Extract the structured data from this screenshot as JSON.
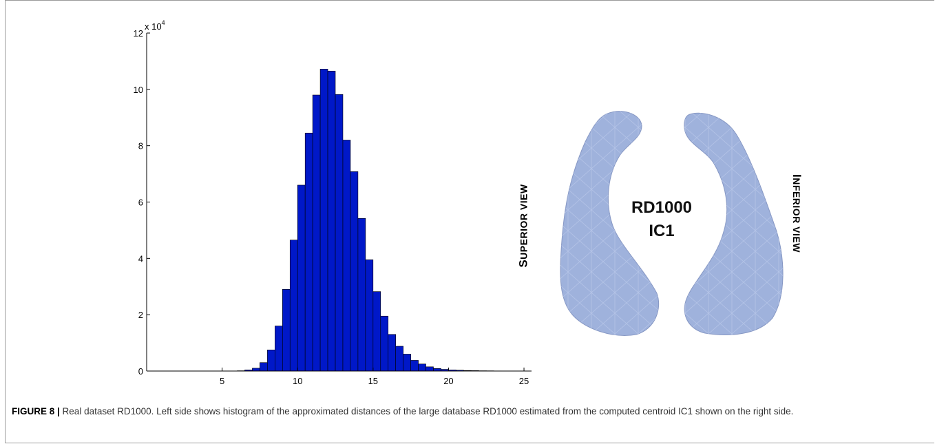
{
  "chart_data": {
    "type": "bar",
    "title": "",
    "xlabel": "",
    "ylabel": "",
    "y_multiplier": "x 10",
    "y_multiplier_exp": "4",
    "xlim": [
      0,
      25.5
    ],
    "ylim": [
      0,
      12
    ],
    "xticks": [
      "5",
      "10",
      "15",
      "20",
      "25"
    ],
    "yticks": [
      "0",
      "2",
      "4",
      "6",
      "8",
      "10",
      "12"
    ],
    "bin_width": 0.5,
    "bar_color": "#0018c8",
    "bins": [
      {
        "x": 6.0,
        "value": 0.01
      },
      {
        "x": 6.5,
        "value": 0.04
      },
      {
        "x": 7.0,
        "value": 0.1
      },
      {
        "x": 7.5,
        "value": 0.3
      },
      {
        "x": 8.0,
        "value": 0.75
      },
      {
        "x": 8.5,
        "value": 1.6
      },
      {
        "x": 9.0,
        "value": 2.9
      },
      {
        "x": 9.5,
        "value": 4.65
      },
      {
        "x": 10.0,
        "value": 6.6
      },
      {
        "x": 10.5,
        "value": 8.45
      },
      {
        "x": 11.0,
        "value": 9.8
      },
      {
        "x": 11.5,
        "value": 10.72
      },
      {
        "x": 12.0,
        "value": 10.65
      },
      {
        "x": 12.5,
        "value": 9.82
      },
      {
        "x": 13.0,
        "value": 8.2
      },
      {
        "x": 13.5,
        "value": 7.08
      },
      {
        "x": 14.0,
        "value": 5.42
      },
      {
        "x": 14.5,
        "value": 3.95
      },
      {
        "x": 15.0,
        "value": 2.82
      },
      {
        "x": 15.5,
        "value": 1.95
      },
      {
        "x": 16.0,
        "value": 1.3
      },
      {
        "x": 16.5,
        "value": 0.88
      },
      {
        "x": 17.0,
        "value": 0.6
      },
      {
        "x": 17.5,
        "value": 0.38
      },
      {
        "x": 18.0,
        "value": 0.25
      },
      {
        "x": 18.5,
        "value": 0.15
      },
      {
        "x": 19.0,
        "value": 0.09
      },
      {
        "x": 19.5,
        "value": 0.06
      },
      {
        "x": 20.0,
        "value": 0.04
      },
      {
        "x": 20.5,
        "value": 0.03
      },
      {
        "x": 21.0,
        "value": 0.02
      },
      {
        "x": 21.5,
        "value": 0.015
      },
      {
        "x": 22.0,
        "value": 0.01
      },
      {
        "x": 22.5,
        "value": 0.008
      },
      {
        "x": 23.0,
        "value": 0.005
      },
      {
        "x": 23.5,
        "value": 0.004
      }
    ]
  },
  "figure": {
    "superior_view_first": "S",
    "superior_view_rest": "UPERIOR VIEW",
    "inferior_view_first": "I",
    "inferior_view_rest": "NFERIOR VIEW",
    "center_line1": "RD1000",
    "center_line2": "IC1",
    "mesh_color": "#9fb2dc"
  },
  "caption": {
    "label": "FIGURE 8 |",
    "text": " Real dataset RD1000. Left side shows histogram of the approximated distances of the large database RD1000 estimated from the computed centroid IC1 shown on the right side."
  }
}
